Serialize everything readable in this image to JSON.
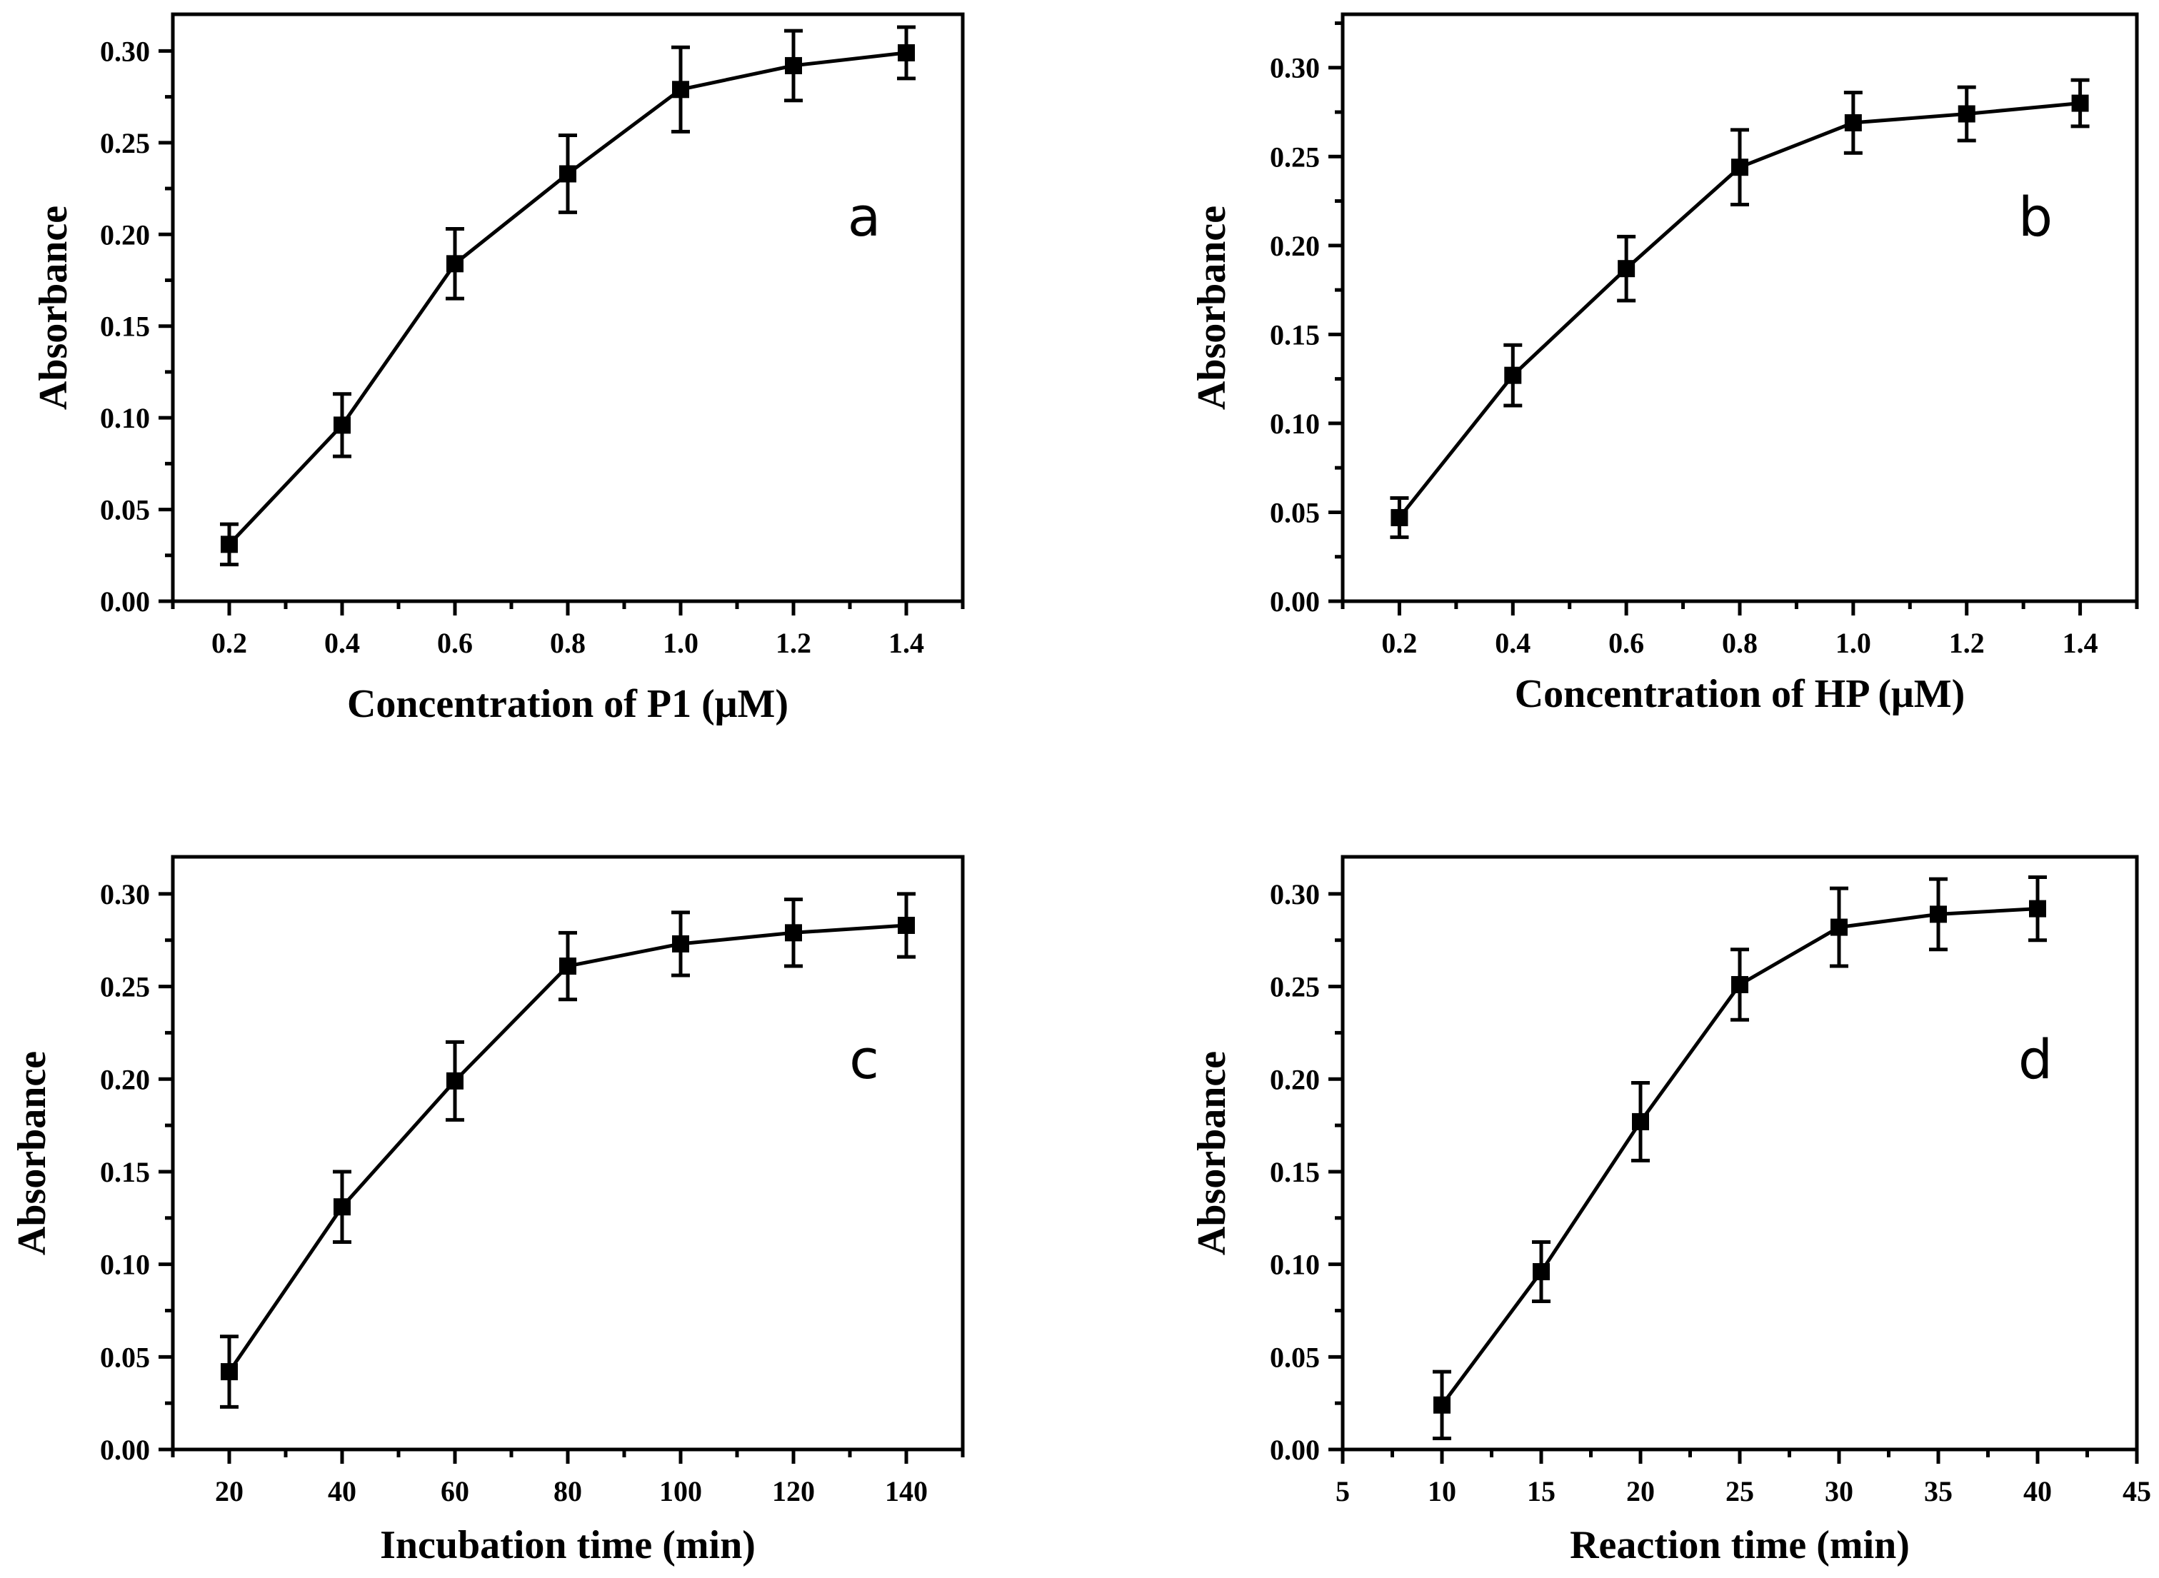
{
  "chart_data": [
    {
      "type": "line",
      "panel": "a",
      "title": "",
      "xlabel": "Concentration of P1 (μM)",
      "ylabel": "Absorbance",
      "xlim": [
        0.1,
        1.5
      ],
      "ylim": [
        0.0,
        0.32
      ],
      "xticks": [
        0.2,
        0.4,
        0.6,
        0.8,
        1.0,
        1.2,
        1.4
      ],
      "xtick_labels": [
        "0.2",
        "0.4",
        "0.6",
        "0.8",
        "1.0",
        "1.2",
        "1.4"
      ],
      "yticks": [
        0.0,
        0.05,
        0.1,
        0.15,
        0.2,
        0.25,
        0.3
      ],
      "ytick_labels": [
        "0.00",
        "0.05",
        "0.10",
        "0.15",
        "0.20",
        "0.25",
        "0.30"
      ],
      "x": [
        0.2,
        0.4,
        0.6,
        0.8,
        1.0,
        1.2,
        1.4
      ],
      "y": [
        0.031,
        0.096,
        0.184,
        0.233,
        0.279,
        0.292,
        0.299
      ],
      "yerr": [
        0.011,
        0.017,
        0.019,
        0.021,
        0.023,
        0.019,
        0.014
      ]
    },
    {
      "type": "line",
      "panel": "b",
      "title": "",
      "xlabel": "Concentration of HP (μM)",
      "ylabel": "Absorbance",
      "xlim": [
        0.1,
        1.5
      ],
      "ylim": [
        0.0,
        0.33
      ],
      "xticks": [
        0.2,
        0.4,
        0.6,
        0.8,
        1.0,
        1.2,
        1.4
      ],
      "xtick_labels": [
        "0.2",
        "0.4",
        "0.6",
        "0.8",
        "1.0",
        "1.2",
        "1.4"
      ],
      "yticks": [
        0.0,
        0.05,
        0.1,
        0.15,
        0.2,
        0.25,
        0.3
      ],
      "ytick_labels": [
        "0.00",
        "0.05",
        "0.10",
        "0.15",
        "0.20",
        "0.25",
        "0.30"
      ],
      "x": [
        0.2,
        0.4,
        0.6,
        0.8,
        1.0,
        1.2,
        1.4
      ],
      "y": [
        0.047,
        0.127,
        0.187,
        0.244,
        0.269,
        0.274,
        0.28
      ],
      "yerr": [
        0.011,
        0.017,
        0.018,
        0.021,
        0.017,
        0.015,
        0.013
      ]
    },
    {
      "type": "line",
      "panel": "c",
      "title": "",
      "xlabel": "Incubation time (min)",
      "ylabel": "Absorbance",
      "xlim": [
        10,
        150
      ],
      "ylim": [
        0.0,
        0.32
      ],
      "xticks": [
        20,
        40,
        60,
        80,
        100,
        120,
        140
      ],
      "xtick_labels": [
        "20",
        "40",
        "60",
        "80",
        "100",
        "120",
        "140"
      ],
      "yticks": [
        0.0,
        0.05,
        0.1,
        0.15,
        0.2,
        0.25,
        0.3
      ],
      "ytick_labels": [
        "0.00",
        "0.05",
        "0.10",
        "0.15",
        "0.20",
        "0.25",
        "0.30"
      ],
      "x": [
        20,
        40,
        60,
        80,
        100,
        120,
        140
      ],
      "y": [
        0.042,
        0.131,
        0.199,
        0.261,
        0.273,
        0.279,
        0.283
      ],
      "yerr": [
        0.019,
        0.019,
        0.021,
        0.018,
        0.017,
        0.018,
        0.017
      ]
    },
    {
      "type": "line",
      "panel": "d",
      "title": "",
      "xlabel": "Reaction time (min)",
      "ylabel": "Absorbance",
      "xlim": [
        5,
        45
      ],
      "ylim": [
        0.0,
        0.32
      ],
      "xticks": [
        5,
        10,
        15,
        20,
        25,
        30,
        35,
        40,
        45
      ],
      "xtick_labels": [
        "5",
        "10",
        "15",
        "20",
        "25",
        "30",
        "35",
        "40",
        "45"
      ],
      "yticks": [
        0.0,
        0.05,
        0.1,
        0.15,
        0.2,
        0.25,
        0.3
      ],
      "ytick_labels": [
        "0.00",
        "0.05",
        "0.10",
        "0.15",
        "0.20",
        "0.25",
        "0.30"
      ],
      "x": [
        10,
        15,
        20,
        25,
        30,
        35,
        40
      ],
      "y": [
        0.024,
        0.096,
        0.177,
        0.251,
        0.282,
        0.289,
        0.292
      ],
      "yerr": [
        0.018,
        0.016,
        0.021,
        0.019,
        0.021,
        0.019,
        0.017
      ]
    }
  ]
}
